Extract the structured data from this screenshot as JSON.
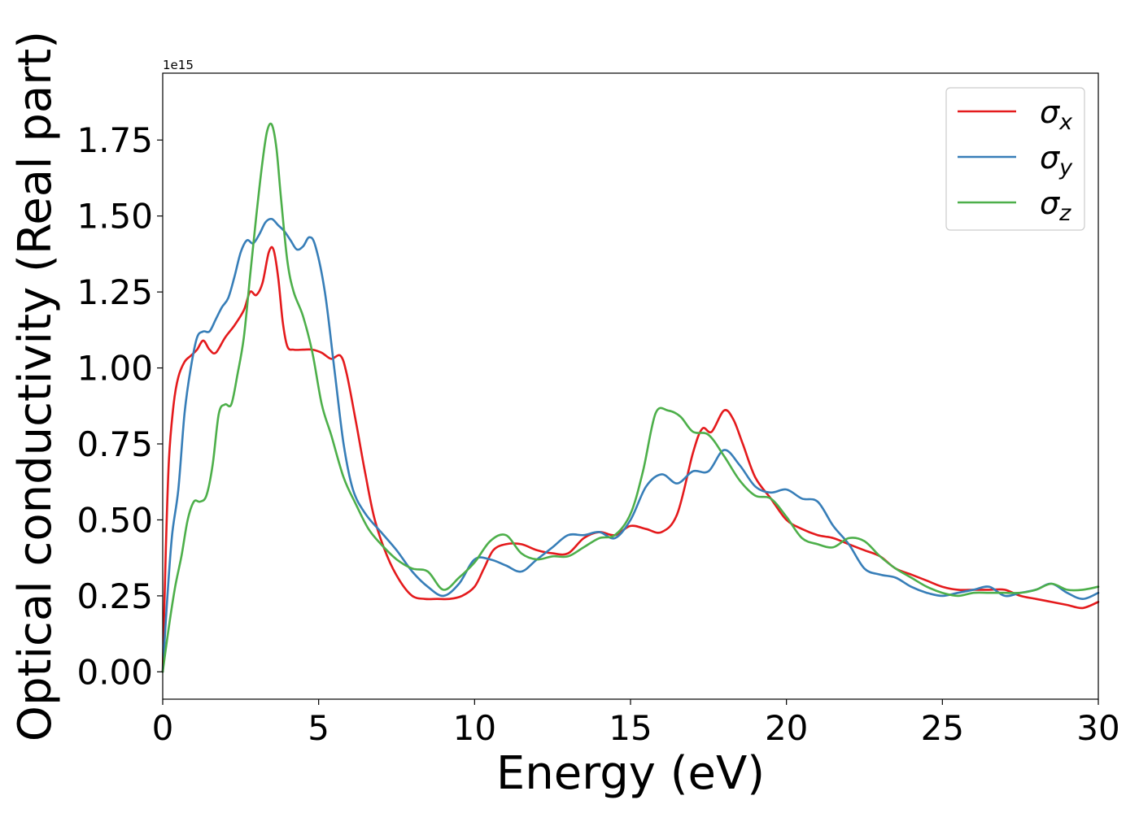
{
  "chart_data": {
    "type": "line",
    "title": "",
    "xlabel": "Energy (eV)",
    "ylabel": "Optical conductivity (Real part)",
    "y_offset_label": "1e15",
    "xlim": [
      0,
      30
    ],
    "ylim": [
      -0.09,
      1.97
    ],
    "xticks": [
      0,
      5,
      10,
      15,
      20,
      25,
      30
    ],
    "xtick_labels": [
      "0",
      "5",
      "10",
      "15",
      "20",
      "25",
      "30"
    ],
    "yticks": [
      0,
      0.25,
      0.5,
      0.75,
      1.0,
      1.25,
      1.5,
      1.75
    ],
    "ytick_labels": [
      "0.00",
      "0.25",
      "0.50",
      "0.75",
      "1.00",
      "1.25",
      "1.50",
      "1.75"
    ],
    "grid": false,
    "legend_position": "top-right",
    "series": [
      {
        "name": "σx",
        "legend_base": "σ",
        "legend_sub": "x",
        "color": "#e41a1c",
        "x": [
          0,
          0.1,
          0.2,
          0.35,
          0.5,
          0.7,
          0.9,
          1.1,
          1.3,
          1.5,
          1.7,
          2.0,
          2.3,
          2.6,
          2.8,
          3.0,
          3.2,
          3.4,
          3.55,
          3.7,
          3.85,
          4.0,
          4.2,
          4.5,
          4.8,
          5.1,
          5.4,
          5.7,
          5.9,
          6.2,
          6.5,
          6.8,
          7.2,
          7.6,
          8.0,
          8.4,
          8.8,
          9.2,
          9.6,
          10.0,
          10.3,
          10.6,
          11.0,
          11.5,
          12.0,
          12.5,
          13.0,
          13.5,
          14.0,
          14.5,
          15.0,
          15.5,
          16.0,
          16.5,
          17.0,
          17.3,
          17.6,
          18.0,
          18.3,
          18.6,
          19.0,
          19.5,
          20.0,
          20.5,
          21.0,
          21.5,
          22.0,
          22.5,
          23.0,
          23.5,
          24.0,
          24.5,
          25.0,
          25.5,
          26.0,
          26.5,
          27.0,
          27.5,
          28.0,
          28.5,
          29.0,
          29.5,
          30.0
        ],
        "y": [
          0.0,
          0.4,
          0.7,
          0.88,
          0.97,
          1.02,
          1.04,
          1.06,
          1.09,
          1.06,
          1.05,
          1.1,
          1.14,
          1.19,
          1.25,
          1.24,
          1.28,
          1.38,
          1.39,
          1.3,
          1.15,
          1.07,
          1.06,
          1.06,
          1.06,
          1.05,
          1.03,
          1.04,
          0.98,
          0.82,
          0.65,
          0.5,
          0.38,
          0.3,
          0.25,
          0.24,
          0.24,
          0.24,
          0.25,
          0.28,
          0.34,
          0.4,
          0.42,
          0.42,
          0.4,
          0.39,
          0.39,
          0.44,
          0.46,
          0.45,
          0.48,
          0.47,
          0.46,
          0.52,
          0.72,
          0.8,
          0.79,
          0.86,
          0.83,
          0.75,
          0.64,
          0.57,
          0.5,
          0.47,
          0.45,
          0.44,
          0.42,
          0.4,
          0.38,
          0.34,
          0.32,
          0.3,
          0.28,
          0.27,
          0.27,
          0.27,
          0.27,
          0.25,
          0.24,
          0.23,
          0.22,
          0.21,
          0.23
        ]
      },
      {
        "name": "σy",
        "legend_base": "σ",
        "legend_sub": "y",
        "color": "#377eb8",
        "x": [
          0,
          0.15,
          0.3,
          0.5,
          0.7,
          0.9,
          1.1,
          1.3,
          1.5,
          1.7,
          1.9,
          2.1,
          2.3,
          2.5,
          2.7,
          2.9,
          3.1,
          3.3,
          3.5,
          3.7,
          3.9,
          4.1,
          4.3,
          4.5,
          4.7,
          4.9,
          5.2,
          5.5,
          5.8,
          6.1,
          6.5,
          7.0,
          7.5,
          8.0,
          8.5,
          9.0,
          9.5,
          10.0,
          10.5,
          11.0,
          11.5,
          12.0,
          12.5,
          13.0,
          13.5,
          14.0,
          14.5,
          15.0,
          15.5,
          16.0,
          16.5,
          17.0,
          17.5,
          18.0,
          18.5,
          19.0,
          19.5,
          20.0,
          20.5,
          21.0,
          21.5,
          22.0,
          22.5,
          23.0,
          23.5,
          24.0,
          24.5,
          25.0,
          25.5,
          26.0,
          26.5,
          27.0,
          27.5,
          28.0,
          28.5,
          29.0,
          29.5,
          30.0
        ],
        "y": [
          0.0,
          0.25,
          0.45,
          0.6,
          0.85,
          1.0,
          1.1,
          1.12,
          1.12,
          1.16,
          1.2,
          1.23,
          1.3,
          1.38,
          1.42,
          1.41,
          1.44,
          1.48,
          1.49,
          1.47,
          1.45,
          1.42,
          1.39,
          1.4,
          1.43,
          1.4,
          1.25,
          1.0,
          0.75,
          0.6,
          0.52,
          0.46,
          0.4,
          0.33,
          0.28,
          0.25,
          0.29,
          0.37,
          0.37,
          0.35,
          0.33,
          0.37,
          0.41,
          0.45,
          0.45,
          0.46,
          0.44,
          0.5,
          0.61,
          0.65,
          0.62,
          0.66,
          0.66,
          0.73,
          0.68,
          0.61,
          0.59,
          0.6,
          0.57,
          0.56,
          0.48,
          0.42,
          0.34,
          0.32,
          0.31,
          0.28,
          0.26,
          0.25,
          0.26,
          0.27,
          0.28,
          0.25,
          0.26,
          0.27,
          0.29,
          0.26,
          0.24,
          0.26
        ]
      },
      {
        "name": "σz",
        "legend_base": "σ",
        "legend_sub": "z",
        "color": "#4daf4a",
        "x": [
          0,
          0.2,
          0.4,
          0.6,
          0.8,
          1.0,
          1.2,
          1.4,
          1.6,
          1.8,
          2.0,
          2.2,
          2.4,
          2.6,
          2.8,
          3.0,
          3.2,
          3.35,
          3.5,
          3.65,
          3.8,
          4.0,
          4.2,
          4.5,
          4.8,
          5.1,
          5.4,
          5.8,
          6.2,
          6.6,
          7.0,
          7.5,
          8.0,
          8.5,
          9.0,
          9.5,
          10.0,
          10.5,
          11.0,
          11.5,
          12.0,
          12.5,
          13.0,
          13.5,
          14.0,
          14.5,
          15.0,
          15.4,
          15.8,
          16.2,
          16.6,
          17.0,
          17.5,
          18.0,
          18.5,
          19.0,
          19.5,
          20.0,
          20.5,
          21.0,
          21.5,
          22.0,
          22.5,
          23.0,
          23.5,
          24.0,
          24.5,
          25.0,
          25.5,
          26.0,
          26.5,
          27.0,
          27.5,
          28.0,
          28.5,
          29.0,
          29.5,
          30.0
        ],
        "y": [
          0.0,
          0.15,
          0.28,
          0.38,
          0.5,
          0.56,
          0.56,
          0.58,
          0.68,
          0.85,
          0.88,
          0.88,
          0.98,
          1.1,
          1.3,
          1.5,
          1.68,
          1.78,
          1.8,
          1.72,
          1.55,
          1.35,
          1.25,
          1.17,
          1.05,
          0.88,
          0.78,
          0.64,
          0.55,
          0.47,
          0.42,
          0.37,
          0.34,
          0.33,
          0.27,
          0.31,
          0.36,
          0.43,
          0.45,
          0.39,
          0.37,
          0.38,
          0.38,
          0.41,
          0.44,
          0.45,
          0.52,
          0.66,
          0.85,
          0.86,
          0.84,
          0.79,
          0.78,
          0.71,
          0.63,
          0.58,
          0.57,
          0.51,
          0.44,
          0.42,
          0.41,
          0.44,
          0.43,
          0.38,
          0.34,
          0.31,
          0.28,
          0.26,
          0.25,
          0.26,
          0.26,
          0.26,
          0.26,
          0.27,
          0.29,
          0.27,
          0.27,
          0.28
        ]
      }
    ]
  }
}
